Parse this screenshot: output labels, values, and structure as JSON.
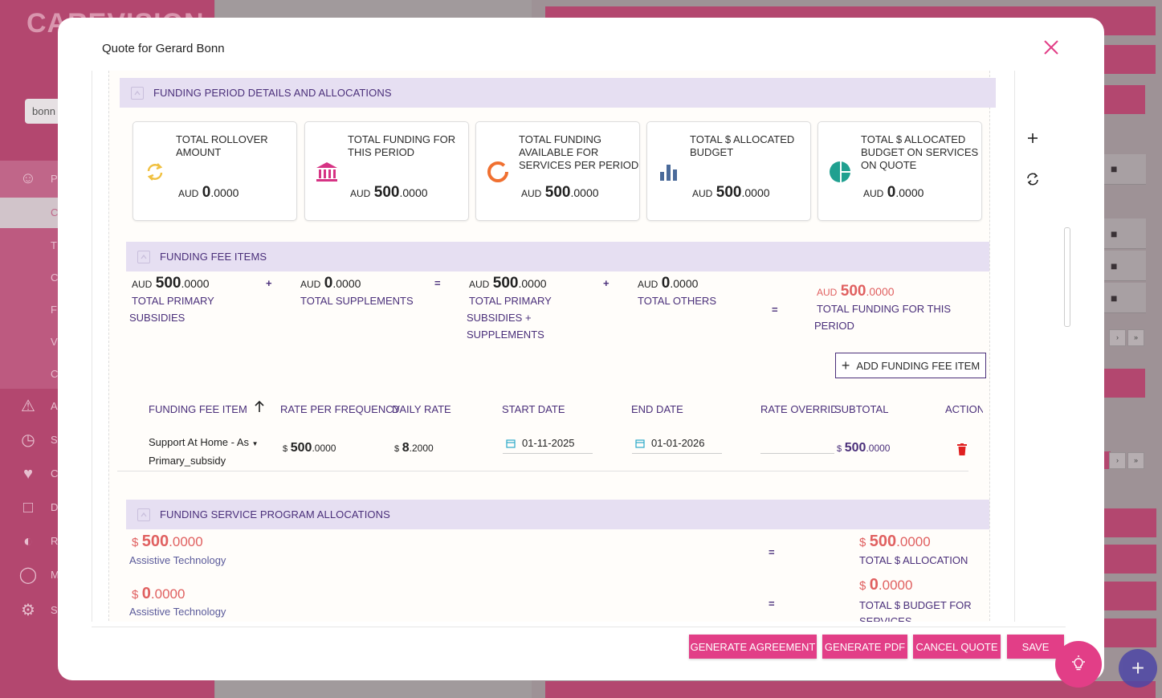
{
  "background": {
    "logo_text": "CAREVISION",
    "search_value": "bonn",
    "nav_letters": [
      "P",
      "C",
      "T",
      "C",
      "F",
      "V",
      "C",
      "A",
      "S",
      "C",
      "D",
      "R",
      "M",
      "S"
    ]
  },
  "modal": {
    "title": "Quote for Gerard Bonn"
  },
  "funding_period": {
    "section_title": "FUNDING PERIOD DETAILS AND ALLOCATIONS",
    "cards": [
      {
        "title": "TOTAL ROLLOVER AMOUNT",
        "currency": "AUD",
        "whole": "0",
        "decimals": ".0000",
        "icon": "refresh-icon",
        "color": "#f0c040"
      },
      {
        "title": "TOTAL FUNDING FOR THIS PERIOD",
        "currency": "AUD",
        "whole": "500",
        "decimals": ".0000",
        "icon": "bank-icon",
        "color": "#d63384"
      },
      {
        "title": "TOTAL FUNDING AVAILABLE FOR SERVICES PER PERIOD",
        "currency": "AUD",
        "whole": "500",
        "decimals": ".0000",
        "icon": "ring-icon",
        "color": "#f07030"
      },
      {
        "title": "TOTAL $ ALLOCATED BUDGET",
        "currency": "AUD",
        "whole": "500",
        "decimals": ".0000",
        "icon": "bar-chart-icon",
        "color": "#4a6a9a"
      },
      {
        "title": "TOTAL $ ALLOCATED BUDGET ON SERVICES ON QUOTE",
        "currency": "AUD",
        "whole": "0",
        "decimals": ".0000",
        "icon": "pie-chart-icon",
        "color": "#20a090"
      }
    ]
  },
  "funding_fee": {
    "section_title": "FUNDING FEE ITEMS",
    "summary": [
      {
        "currency": "AUD",
        "whole": "500",
        "decimals": ".0000",
        "label_lines": [
          "TOTAL PRIMARY",
          "SUBSIDIES"
        ]
      },
      {
        "currency": "AUD",
        "whole": "0",
        "decimals": ".0000",
        "label_lines": [
          "TOTAL SUPPLEMENTS"
        ]
      },
      {
        "currency": "AUD",
        "whole": "500",
        "decimals": ".0000",
        "label_lines": [
          "TOTAL PRIMARY",
          "SUBSIDIES +",
          "SUPPLEMENTS"
        ]
      },
      {
        "currency": "AUD",
        "whole": "0",
        "decimals": ".0000",
        "label_lines": [
          "TOTAL OTHERS"
        ]
      },
      {
        "currency": "AUD",
        "whole": "500",
        "decimals": ".0000",
        "label_lines": [
          "TOTAL FUNDING FOR THIS",
          "PERIOD"
        ]
      }
    ],
    "operators": [
      "+",
      "=",
      "+",
      "="
    ],
    "add_button": "ADD FUNDING FEE ITEM",
    "columns": [
      "FUNDING FEE ITEM",
      "RATE PER FREQUENCY",
      "DAILY RATE",
      "START DATE",
      "END DATE",
      "RATE OVERRIDE",
      "SUBTOTAL",
      "ACTION"
    ],
    "rows": [
      {
        "item_line1": "Support At Home - As",
        "item_line2": "Primary_subsidy",
        "rate_sym": "$",
        "rate_whole": "500",
        "rate_dec": ".0000",
        "daily_sym": "$",
        "daily_whole": "8",
        "daily_dec": ".2000",
        "start_date": "01-11-2025",
        "end_date": "01-01-2026",
        "rate_override": "",
        "subtotal_sym": "$",
        "subtotal_whole": "500",
        "subtotal_dec": ".0000"
      }
    ]
  },
  "service_program": {
    "section_title": "FUNDING SERVICE PROGRAM ALLOCATIONS",
    "rows": [
      {
        "sym": "$",
        "whole": "500",
        "dec": ".0000",
        "program": "Assistive Technology",
        "total_sym": "$",
        "total_whole": "500",
        "total_dec": ".0000",
        "total_label": "TOTAL $ ALLOCATION"
      },
      {
        "sym": "$",
        "whole": "0",
        "dec": ".0000",
        "program": "Assistive Technology",
        "total_sym": "$",
        "total_whole": "0",
        "total_dec": ".0000",
        "total_label": "TOTAL $ BUDGET FOR SERVICES"
      }
    ],
    "equals": "="
  },
  "footer": {
    "generate_agreement": "GENERATE AGREEMENT",
    "generate_pdf": "GENERATE PDF",
    "cancel_quote": "CANCEL QUOTE",
    "save": "SAVE"
  },
  "colors": {
    "brand_pink": "#e23e87",
    "section_bg": "#e6dff2",
    "section_text": "#4a2f7a",
    "alloc_red": "#e06060"
  }
}
